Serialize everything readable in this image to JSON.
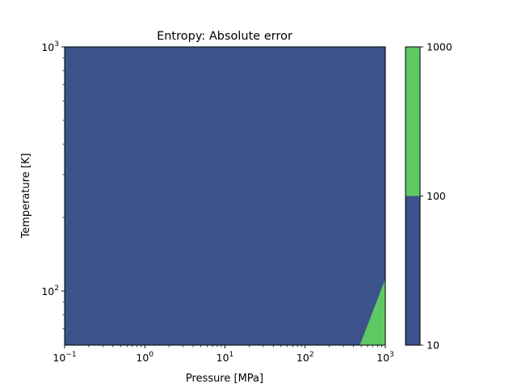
{
  "chart_data": {
    "type": "contour",
    "title": "Entropy: Absolute error",
    "xlabel": "Pressure [MPa]",
    "ylabel": "Temperature [K]",
    "xscale": "log",
    "yscale": "log",
    "xlim": [
      0.1,
      1000
    ],
    "ylim": [
      60,
      1000
    ],
    "x_ticks": [
      {
        "value": 0.1,
        "base": "10",
        "exp": "−1"
      },
      {
        "value": 1,
        "base": "10",
        "exp": "0"
      },
      {
        "value": 10,
        "base": "10",
        "exp": "1"
      },
      {
        "value": 100,
        "base": "10",
        "exp": "2"
      },
      {
        "value": 1000,
        "base": "10",
        "exp": "3"
      }
    ],
    "y_ticks": [
      {
        "value": 100,
        "base": "10",
        "exp": "2"
      },
      {
        "value": 1000,
        "base": "10",
        "exp": "3"
      }
    ],
    "levels": [
      {
        "range": [
          10,
          100
        ],
        "color": "#3b528b"
      },
      {
        "range": [
          100,
          1000
        ],
        "color": "#5ec962"
      }
    ],
    "regions": [
      {
        "level": 1,
        "polygon": [
          [
            480,
            60
          ],
          [
            1000,
            60
          ],
          [
            1000,
            112
          ]
        ]
      }
    ],
    "colorbar": {
      "scale": "log",
      "range": [
        10,
        1000
      ],
      "ticks": [
        {
          "value": 10,
          "label": "10"
        },
        {
          "value": 100,
          "label": "100"
        },
        {
          "value": 1000,
          "label": "1000"
        }
      ]
    }
  }
}
